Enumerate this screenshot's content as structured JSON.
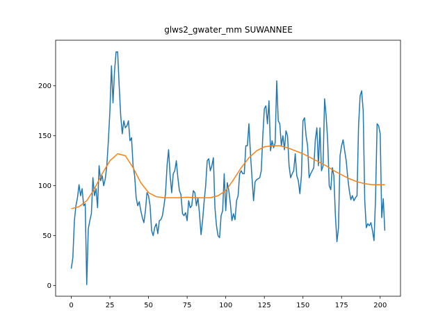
{
  "chart_data": {
    "type": "line",
    "title": "glws2_gwater_mm SUWANNEE",
    "series": [
      {
        "color": "#1f77b4",
        "x": [
          0,
          1,
          2,
          3,
          4,
          5,
          6,
          7,
          8,
          9,
          10,
          11,
          12,
          13,
          14,
          15,
          16,
          17,
          18,
          19,
          20,
          21,
          22,
          23,
          24,
          25,
          26,
          27,
          28,
          29,
          30,
          31,
          32,
          33,
          34,
          35,
          36,
          37,
          38,
          39,
          40,
          41,
          42,
          43,
          44,
          45,
          46,
          47,
          48,
          49,
          50,
          51,
          52,
          53,
          54,
          55,
          56,
          57,
          58,
          59,
          60,
          61,
          62,
          63,
          64,
          65,
          66,
          67,
          68,
          69,
          70,
          71,
          72,
          73,
          74,
          75,
          76,
          77,
          78,
          79,
          80,
          81,
          82,
          83,
          84,
          85,
          86,
          87,
          88,
          89,
          90,
          91,
          92,
          93,
          94,
          95,
          96,
          97,
          98,
          99,
          100,
          101,
          102,
          103,
          104,
          105,
          106,
          107,
          108,
          109,
          110,
          111,
          112,
          113,
          114,
          115,
          116,
          117,
          118,
          119,
          120,
          121,
          122,
          123,
          124,
          125,
          126,
          127,
          128,
          129,
          130,
          131,
          132,
          133,
          134,
          135,
          136,
          137,
          138,
          139,
          140,
          141,
          142,
          143,
          144,
          145,
          146,
          147,
          148,
          149,
          150,
          151,
          152,
          153,
          154,
          155,
          156,
          157,
          158,
          159,
          160,
          161,
          162,
          163,
          164,
          165,
          166,
          167,
          168,
          169,
          170,
          171,
          172,
          173,
          174,
          175,
          176,
          177,
          178,
          179,
          180,
          181,
          182,
          183,
          184,
          185,
          186,
          187,
          188,
          189,
          190,
          191,
          192,
          193,
          194,
          195,
          196,
          197,
          198,
          199,
          200,
          201,
          202,
          203
        ],
        "values": [
          17,
          28,
          65,
          80,
          88,
          101,
          90,
          97,
          80,
          82,
          1,
          57,
          65,
          72,
          108,
          90,
          97,
          78,
          120,
          105,
          110,
          100,
          107,
          120,
          145,
          175,
          220,
          183,
          215,
          234,
          234,
          200,
          170,
          152,
          165,
          158,
          160,
          165,
          145,
          148,
          120,
          110,
          88,
          80,
          84,
          75,
          68,
          63,
          75,
          93,
          90,
          80,
          55,
          50,
          58,
          62,
          52,
          65,
          66,
          70,
          80,
          92,
          120,
          136,
          110,
          93,
          112,
          115,
          125,
          108,
          95,
          91,
          72,
          70,
          73,
          65,
          85,
          78,
          80,
          95,
          93,
          80,
          88,
          72,
          51,
          65,
          84,
          100,
          125,
          127,
          115,
          120,
          128,
          78,
          60,
          50,
          48,
          70,
          75,
          112,
          75,
          103,
          95,
          82,
          65,
          72,
          66,
          85,
          90,
          112,
          115,
          112,
          112,
          140,
          140,
          162,
          132,
          108,
          85,
          104,
          106,
          107,
          108,
          115,
          150,
          177,
          180,
          162,
          185,
          135,
          145,
          138,
          143,
          205,
          165,
          162,
          140,
          150,
          136,
          155,
          150,
          120,
          108,
          112,
          115,
          132,
          110,
          105,
          92,
          110,
          165,
          168,
          150,
          140,
          108,
          112,
          115,
          118,
          146,
          158,
          120,
          158,
          115,
          120,
          187,
          170,
          145,
          100,
          96,
          118,
          110,
          70,
          44,
          58,
          130,
          140,
          146,
          135,
          125,
          108,
          95,
          86,
          90,
          85,
          88,
          90,
          160,
          190,
          195,
          175,
          85,
          58,
          62,
          60,
          63,
          55,
          45,
          88,
          162,
          160,
          152,
          68,
          87,
          55
        ]
      },
      {
        "color": "#ff7f0e",
        "x": [
          0,
          5,
          10,
          15,
          20,
          25,
          30,
          35,
          40,
          45,
          50,
          55,
          60,
          65,
          70,
          75,
          80,
          85,
          90,
          95,
          100,
          105,
          110,
          115,
          120,
          125,
          130,
          135,
          140,
          145,
          150,
          155,
          160,
          165,
          170,
          175,
          180,
          185,
          190,
          195,
          200,
          203
        ],
        "values": [
          77,
          79,
          85,
          97,
          112,
          125,
          132,
          130,
          118,
          103,
          93,
          89,
          88,
          88,
          88,
          88.5,
          88,
          88,
          88,
          90,
          95,
          106,
          118,
          128,
          135,
          139,
          140,
          140,
          138,
          135,
          132,
          128,
          124,
          120,
          115,
          111,
          107,
          104,
          102,
          101,
          101,
          101
        ]
      }
    ],
    "xlim": [
      -10.15,
      213.15
    ],
    "ylim": [
      -10.65,
      245.65
    ],
    "xticks": [
      0,
      25,
      50,
      75,
      100,
      125,
      150,
      175,
      200
    ],
    "yticks": [
      0,
      50,
      100,
      150,
      200
    ]
  }
}
